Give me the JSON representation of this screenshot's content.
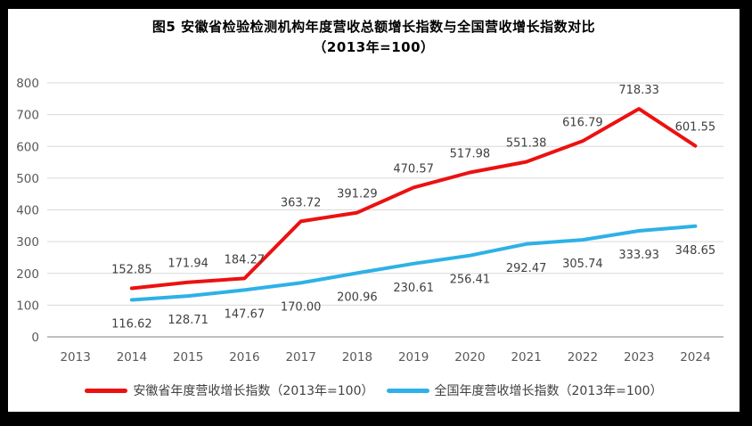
{
  "figure": {
    "title_line1": "图5  安徽省检验检测机构年度营收总额增长指数与全国营收增长指数对比",
    "title_line2": "（2013年=100）"
  },
  "chart_data": {
    "type": "line",
    "title": "图5 安徽省检验检测机构年度营收总额增长指数与全国营收增长指数对比（2013年=100）",
    "categories": [
      "2013",
      "2014",
      "2015",
      "2016",
      "2017",
      "2018",
      "2019",
      "2020",
      "2021",
      "2022",
      "2023",
      "2024"
    ],
    "series": [
      {
        "name": "安徽省年度营收增长指数（2013年=100）",
        "color": "#EC1111",
        "values": [
          null,
          152.85,
          171.94,
          184.27,
          363.72,
          391.29,
          470.57,
          517.98,
          551.38,
          616.79,
          718.33,
          601.55
        ],
        "labels": [
          "",
          "152.85",
          "171.94",
          "184.27",
          "363.72",
          "391.29",
          "470.57",
          "517.98",
          "551.38",
          "616.79",
          "718.33",
          "601.55"
        ]
      },
      {
        "name": "全国年度营收增长指数（2013年=100）",
        "color": "#2EB1E6",
        "values": [
          null,
          116.62,
          128.71,
          147.67,
          170.0,
          200.96,
          230.61,
          256.41,
          292.47,
          305.74,
          333.93,
          348.65
        ],
        "labels": [
          "",
          "116.62",
          "128.71",
          "147.67",
          "170.00",
          "200.96",
          "230.61",
          "256.41",
          "292.47",
          "305.74",
          "333.93",
          "348.65"
        ]
      }
    ],
    "ylim": [
      0,
      800
    ],
    "yticks": [
      0,
      100,
      200,
      300,
      400,
      500,
      600,
      700,
      800
    ],
    "grid": true,
    "legend_position": "bottom",
    "data_labels": true,
    "axis_text_color": "#595959",
    "label_text_color": "#404040",
    "gridline_color": "#D9D9D9",
    "axisline_color": "#ABABAB",
    "line_width": 4
  }
}
